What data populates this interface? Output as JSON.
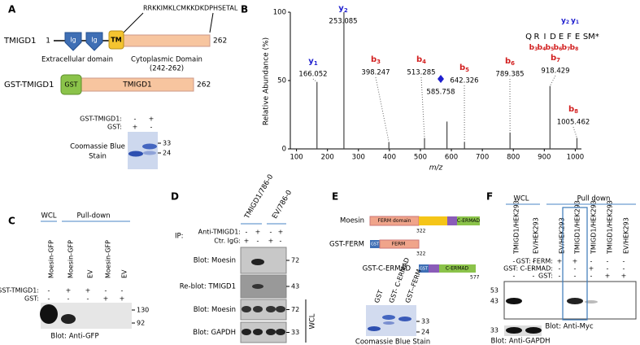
{
  "panel_a": {
    "label": "A",
    "protein": "TMIGD1",
    "start": "1",
    "end": "262",
    "sequence": "RRKKIMKLCMKKDKDPHSETAL",
    "domains": [
      "Ig",
      "Ig",
      "TM"
    ],
    "extracellular": "Extracellular domain",
    "cytoplasmic": "Cytoplasmic Domain",
    "cyto_range": "(242-262)",
    "construct": "GST-TMIGD1",
    "gst": "GST",
    "construct_domain": "TMIGD1",
    "construct_end": "262",
    "rows": [
      {
        "label": "GST-TMIGD1:",
        "lanes": [
          "-",
          "+"
        ]
      },
      {
        "label": "GST:",
        "lanes": [
          "+",
          "-"
        ]
      }
    ],
    "markers": [
      "33",
      "24"
    ],
    "stain_lines": [
      "Coomassie Blue",
      "Stain"
    ]
  },
  "chart_data": {
    "type": "spectrum",
    "panel_label": "B",
    "y_label": "Relative Abundance (%)",
    "x_label": "m/z",
    "xlim": [
      80,
      1020
    ],
    "ylim": [
      0,
      100
    ],
    "xticks": [
      100,
      200,
      300,
      400,
      500,
      600,
      700,
      800,
      900,
      1000
    ],
    "yticks": [
      0,
      50,
      100
    ],
    "peaks": [
      {
        "ion": "y",
        "index": "1",
        "mz": 166.052,
        "abundance": 49,
        "color": "#1f1fcf"
      },
      {
        "ion": "y",
        "index": "2",
        "mz": 253.085,
        "abundance": 100,
        "color": "#1f1fcf"
      },
      {
        "ion": "b",
        "index": "3",
        "mz": 398.247,
        "abundance": 5,
        "color": "#d21f1f"
      },
      {
        "ion": "b",
        "index": "4",
        "mz": 513.285,
        "abundance": 8,
        "color": "#d21f1f"
      },
      {
        "ion": "b",
        "index": "5",
        "mz": 642.326,
        "abundance": 5,
        "color": "#d21f1f"
      },
      {
        "ion": "b",
        "index": "6",
        "mz": 789.385,
        "abundance": 12,
        "color": "#d21f1f"
      },
      {
        "ion": "b",
        "index": "7",
        "mz": 918.429,
        "abundance": 46,
        "color": "#d21f1f"
      },
      {
        "ion": "b",
        "index": "8",
        "mz": 1005.462,
        "abundance": 8,
        "color": "#d21f1f"
      }
    ],
    "precursor": {
      "mz": 585.758,
      "abundance": 20,
      "color": "#1f1fcf"
    },
    "sequence": [
      "Q",
      "R",
      "I",
      "D",
      "E",
      "F",
      "E",
      "S",
      "M*"
    ],
    "y_ions": [
      {
        "ion": "y",
        "index": "2"
      },
      {
        "ion": "y",
        "index": "1"
      }
    ],
    "b_ions": [
      {
        "ion": "b",
        "index": "3"
      },
      {
        "ion": "b",
        "index": "4"
      },
      {
        "ion": "b",
        "index": "5"
      },
      {
        "ion": "b",
        "index": "6"
      },
      {
        "ion": "b",
        "index": "7"
      },
      {
        "ion": "b",
        "index": "8"
      }
    ],
    "y_color": "#1f1fcf",
    "b_color": "#d21f1f"
  },
  "panel_c": {
    "label": "C",
    "wcl": "WCL",
    "pulldown": "Pull-down",
    "lanes": [
      "Moesin-GFP",
      "Moesin-GFP",
      "EV",
      "Moesin-GFP",
      "EV"
    ],
    "rows": [
      {
        "label": "GST-TMIGD1:",
        "lanes": [
          "-",
          "+",
          "+",
          "-",
          "-"
        ]
      },
      {
        "label": "GST:",
        "lanes": [
          "-",
          "-",
          "-",
          "+",
          "+"
        ]
      }
    ],
    "markers": [
      "130",
      "92"
    ],
    "blot": "Blot: Anti-GFP"
  },
  "panel_d": {
    "label": "D",
    "groups": [
      "TMIGD1/786-0",
      "EV/786-0"
    ],
    "ip": "IP:",
    "rows": [
      {
        "label": "Anti-TMIGD1:",
        "lanes": [
          "-",
          "+",
          "-",
          "+"
        ]
      },
      {
        "label": "Ctr. IgG:",
        "lanes": [
          "+",
          "-",
          "+",
          "-"
        ]
      }
    ],
    "blots": [
      {
        "label": "Blot: Moesin",
        "marker": "72"
      },
      {
        "label": "Re-blot: TMIGD1",
        "marker": "43"
      },
      {
        "label": "Blot: Moesin",
        "marker": "72"
      },
      {
        "label": "Blot: GAPDH",
        "marker": "33"
      }
    ],
    "wcl": "WCL"
  },
  "panel_e": {
    "label": "E",
    "moesin": "Moesin",
    "ferm_domain": "FERM domain",
    "cermad": "C-ERMAD",
    "moesin_pos": "322",
    "gst_ferm": "GST-FERM",
    "gst": "GST",
    "ferm": "FERM",
    "ferm_pos": "322",
    "gst_cermad": "GST-C-ERMAD",
    "gst2": "GST",
    "cermad2": "C-ERMAD",
    "cermad_pos": "577",
    "gel_lanes": [
      "GST",
      "GST- C-ERMAD",
      "GST--FERM"
    ],
    "markers": [
      "33",
      "24"
    ],
    "stain": "Coomassie Blue Stain"
  },
  "panel_f": {
    "label": "F",
    "wcl": "WCL",
    "pulldown": "Pull down",
    "lanes": [
      "TMIGD1/HEK293",
      "EV/HEK293",
      "EV/HEK293",
      "TMIGD1/HEK293",
      "TMIGD1/HEK293",
      "TMIGD1/HEK293",
      "EV/HEK293"
    ],
    "rows": [
      {
        "label": "GST: FERM:",
        "lanes": [
          "-",
          "-",
          "+",
          "+",
          "-",
          "-",
          "-"
        ]
      },
      {
        "label": "GST: C-ERMAD:",
        "lanes": [
          "-",
          "-",
          "-",
          "-",
          "+",
          "-",
          "-"
        ]
      },
      {
        "label": "GST:",
        "lanes": [
          "-",
          "-",
          "-",
          "-",
          "-",
          "+",
          "+"
        ]
      }
    ],
    "markers": [
      "53",
      "43",
      "33"
    ],
    "blot": "Blot: Anti-Myc",
    "blot2": "Blot: Anti-GAPDH"
  }
}
